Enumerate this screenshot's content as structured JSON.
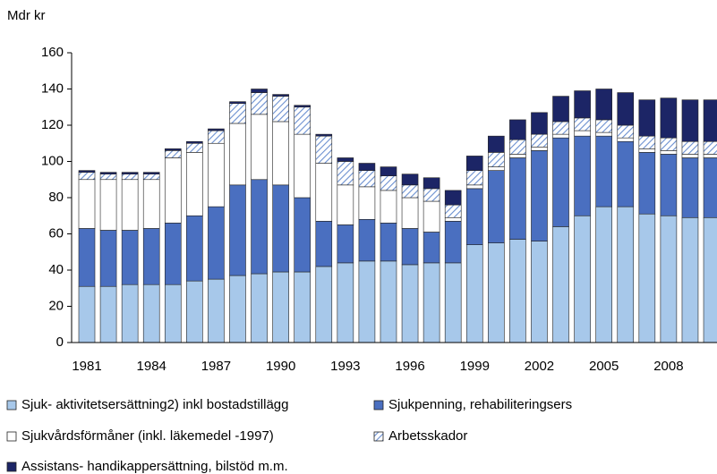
{
  "chart_data": {
    "type": "bar",
    "stacked": true,
    "ylabel": "Mdr kr",
    "categories": [
      "1981",
      null,
      null,
      "1984",
      null,
      null,
      "1987",
      null,
      null,
      "1990",
      null,
      null,
      "1993",
      null,
      null,
      "1996",
      null,
      null,
      "1999",
      null,
      null,
      "2002",
      null,
      null,
      "2005",
      null,
      null,
      "2008",
      null,
      null
    ],
    "series": [
      {
        "name": "Sjuk- aktivitetsersättning2) inkl bostadstillägg",
        "color": "#a7c8ea",
        "values": [
          31,
          31,
          32,
          32,
          32,
          34,
          35,
          37,
          38,
          39,
          39,
          42,
          44,
          45,
          45,
          43,
          44,
          44,
          54,
          55,
          57,
          56,
          64,
          70,
          75,
          75,
          71,
          70,
          69,
          69
        ]
      },
      {
        "name": "Sjukpenning, rehabiliteringsers",
        "color": "#4a6fc0",
        "values": [
          32,
          31,
          30,
          31,
          34,
          36,
          40,
          50,
          52,
          48,
          41,
          25,
          21,
          23,
          21,
          20,
          17,
          23,
          31,
          40,
          45,
          50,
          49,
          44,
          39,
          36,
          34,
          34,
          33,
          33
        ]
      },
      {
        "name": "Sjukvårdsförmåner (inkl. läkemedel -1997)",
        "color": "#ffffff",
        "values": [
          27,
          28,
          28,
          27,
          36,
          35,
          35,
          34,
          36,
          35,
          35,
          32,
          22,
          18,
          18,
          17,
          17,
          2,
          2,
          2,
          2,
          2,
          2,
          3,
          2,
          2,
          2,
          2,
          2,
          2
        ]
      },
      {
        "name": "Arbetsskador",
        "color": "#4a6fc0",
        "pattern": "hatch",
        "values": [
          4,
          3,
          3,
          3,
          4,
          5,
          7,
          11,
          12,
          14,
          15,
          15,
          13,
          9,
          8,
          7,
          7,
          7,
          8,
          8,
          8,
          7,
          7,
          7,
          7,
          7,
          7,
          7,
          7,
          7
        ]
      },
      {
        "name": "Assistans- handikappersättning, bilstöd m.m.",
        "color": "#1c2566",
        "values": [
          1,
          1,
          1,
          1,
          1,
          1,
          1,
          1,
          2,
          1,
          1,
          1,
          2,
          4,
          5,
          6,
          6,
          8,
          8,
          9,
          11,
          12,
          14,
          15,
          17,
          18,
          20,
          22,
          23,
          23
        ]
      }
    ],
    "ylim": [
      0,
      160
    ],
    "yticks": [
      0,
      20,
      40,
      60,
      80,
      100,
      120,
      140,
      160
    ],
    "grid": false
  }
}
